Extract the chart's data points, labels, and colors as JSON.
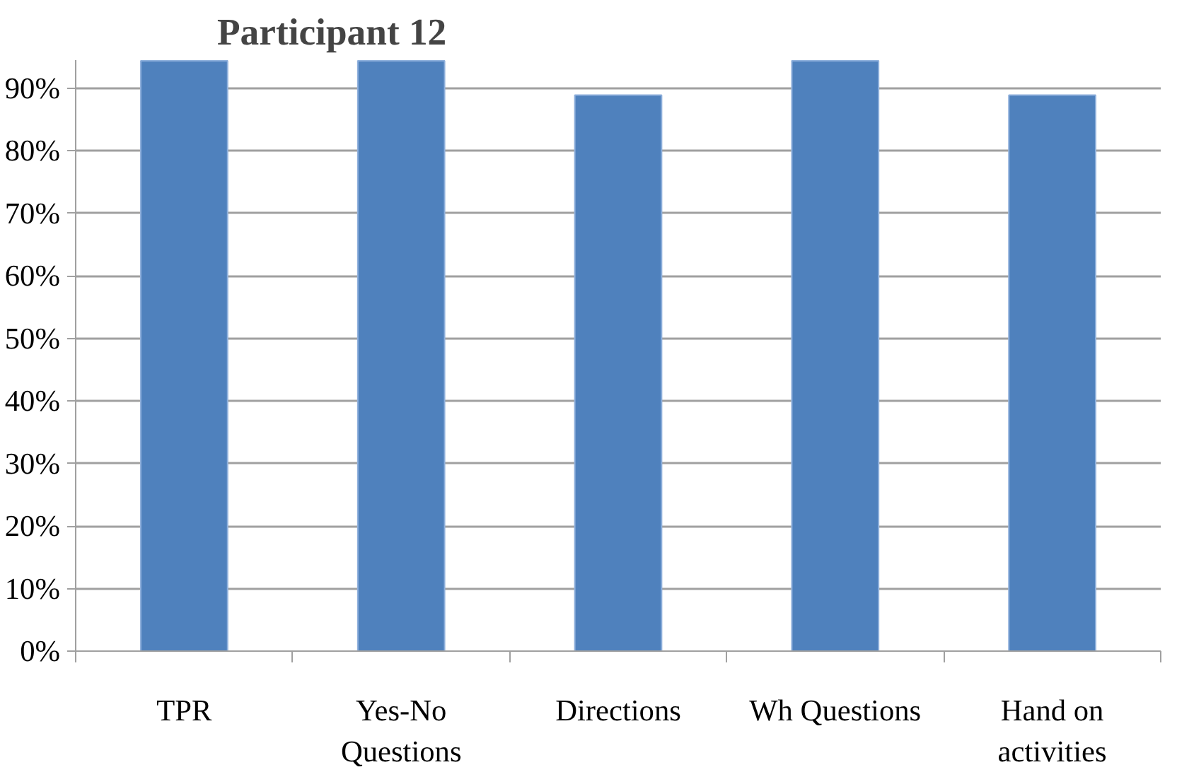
{
  "chart_data": {
    "type": "bar",
    "title": "Participant 12",
    "categories": [
      "TPR",
      "Yes-No Questions",
      "Directions",
      "Wh Questions",
      "Hand on activities"
    ],
    "values": [
      94.4,
      94.4,
      88.9,
      94.4,
      88.9
    ],
    "color": "#4f81bd",
    "ylim": [
      0,
      94.5
    ],
    "yticks": [
      {
        "value": 0,
        "label": "0%"
      },
      {
        "value": 10,
        "label": "10%"
      },
      {
        "value": 20,
        "label": "20%"
      },
      {
        "value": 30,
        "label": "30%"
      },
      {
        "value": 40,
        "label": "40%"
      },
      {
        "value": 50,
        "label": "50%"
      },
      {
        "value": 60,
        "label": "60%"
      },
      {
        "value": 70,
        "label": "70%"
      },
      {
        "value": 80,
        "label": "80%"
      },
      {
        "value": 90,
        "label": "90%"
      }
    ],
    "grid": "y"
  }
}
